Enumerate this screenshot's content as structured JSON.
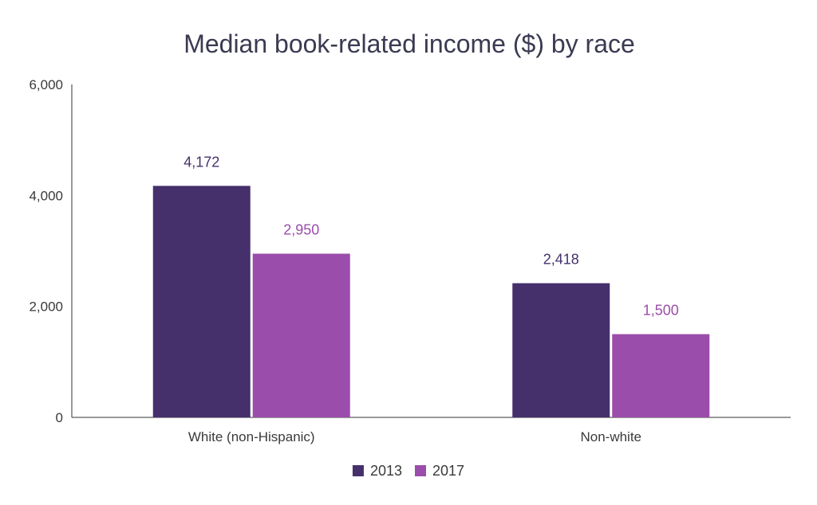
{
  "chart_data": {
    "type": "bar",
    "title": "Median book-related income ($) by race",
    "xlabel": "",
    "ylabel": "",
    "categories": [
      "White (non-Hispanic)",
      "Non-white"
    ],
    "series": [
      {
        "name": "2013",
        "values": [
          4172,
          2418
        ],
        "labels": [
          "4,172",
          "2,418"
        ],
        "color": "#45306b"
      },
      {
        "name": "2017",
        "values": [
          2950,
          1500
        ],
        "labels": [
          "2,950",
          "1,500"
        ],
        "color": "#9b4dab"
      }
    ],
    "ylim": [
      0,
      6000
    ],
    "yticks": [
      0,
      2000,
      4000,
      6000
    ],
    "ytick_labels": [
      "0",
      "2,000",
      "4,000",
      "6,000"
    ],
    "grid": false,
    "legend_position": "bottom-center"
  }
}
